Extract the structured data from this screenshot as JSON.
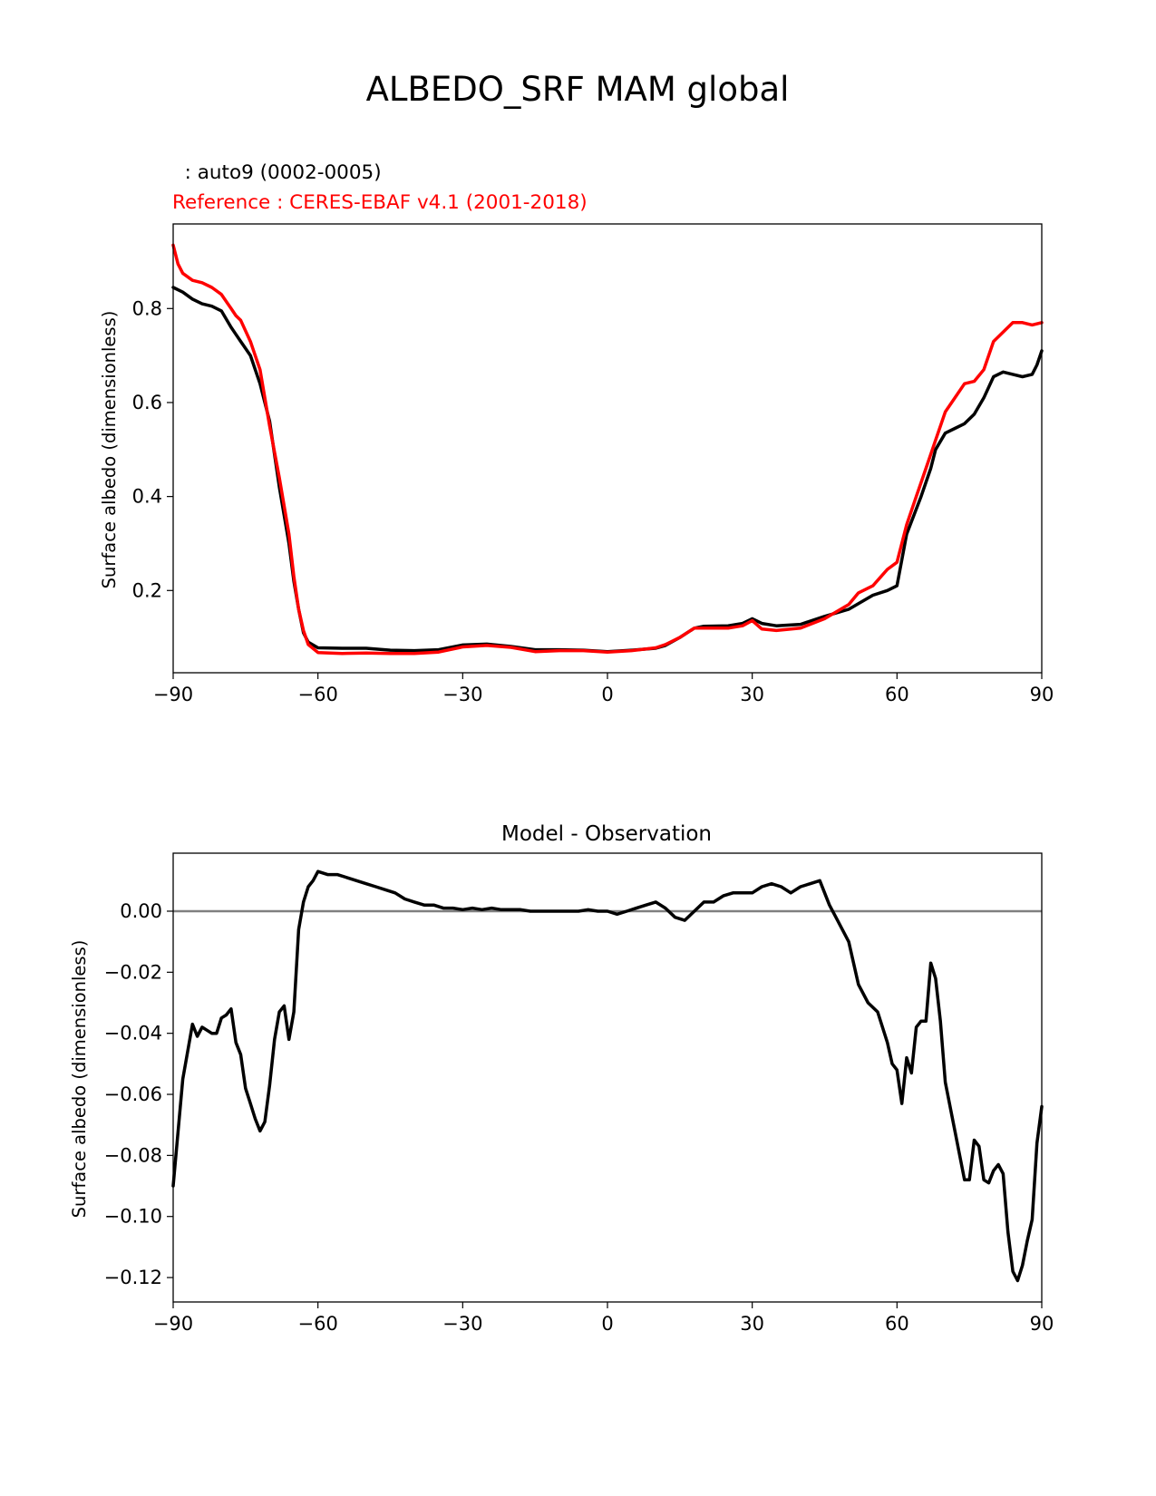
{
  "page_title": "ALBEDO_SRF MAM global",
  "chart_data": [
    {
      "type": "line",
      "legend_model": "  : auto9 (0002-0005)",
      "legend_reference": "Reference : CERES-EBAF v4.1 (2001-2018)",
      "title": "",
      "xlabel": "",
      "ylabel": "Surface albedo (dimensionless)",
      "xlim": [
        -90,
        90
      ],
      "ylim": [
        0.025,
        0.98
      ],
      "xticks": [
        -90,
        -60,
        -30,
        0,
        30,
        60,
        90
      ],
      "xtick_labels": [
        "−90",
        "−60",
        "−30",
        "0",
        "30",
        "60",
        "90"
      ],
      "yticks": [
        0.2,
        0.4,
        0.6,
        0.8
      ],
      "ytick_labels": [
        "0.2",
        "0.4",
        "0.6",
        "0.8"
      ],
      "colors": {
        "model": "#000000",
        "reference": "#ff0000"
      },
      "series": [
        {
          "name": "auto9 (0002-0005)",
          "x": [
            -90,
            -88,
            -86,
            -84,
            -82,
            -80,
            -78,
            -77,
            -76,
            -74,
            -72,
            -70,
            -68,
            -66,
            -65,
            -64,
            -63,
            -62,
            -60,
            -55,
            -50,
            -45,
            -40,
            -35,
            -30,
            -25,
            -20,
            -15,
            -10,
            -5,
            0,
            5,
            10,
            12,
            15,
            18,
            20,
            25,
            28,
            30,
            32,
            35,
            40,
            45,
            50,
            55,
            58,
            60,
            62,
            65,
            67,
            68,
            70,
            72,
            74,
            76,
            78,
            80,
            82,
            84,
            86,
            88,
            89,
            90
          ],
          "y": [
            0.845,
            0.835,
            0.82,
            0.81,
            0.805,
            0.795,
            0.76,
            0.745,
            0.73,
            0.7,
            0.64,
            0.56,
            0.42,
            0.3,
            0.22,
            0.16,
            0.11,
            0.09,
            0.078,
            0.077,
            0.077,
            0.073,
            0.072,
            0.074,
            0.084,
            0.086,
            0.081,
            0.074,
            0.074,
            0.073,
            0.07,
            0.073,
            0.077,
            0.083,
            0.1,
            0.12,
            0.124,
            0.125,
            0.13,
            0.14,
            0.13,
            0.125,
            0.128,
            0.145,
            0.16,
            0.19,
            0.2,
            0.21,
            0.32,
            0.4,
            0.46,
            0.5,
            0.535,
            0.545,
            0.555,
            0.575,
            0.61,
            0.655,
            0.665,
            0.66,
            0.655,
            0.66,
            0.68,
            0.71
          ]
        },
        {
          "name": "CERES-EBAF v4.1 (2001-2018)",
          "x": [
            -90,
            -89,
            -88,
            -86,
            -84,
            -82,
            -80,
            -78,
            -77,
            -76,
            -74,
            -72,
            -71,
            -70,
            -68,
            -66,
            -65,
            -64,
            -63,
            -62,
            -60,
            -55,
            -50,
            -45,
            -40,
            -35,
            -30,
            -25,
            -20,
            -15,
            -10,
            -5,
            0,
            5,
            10,
            12,
            15,
            18,
            20,
            25,
            28,
            30,
            32,
            35,
            40,
            45,
            50,
            52,
            55,
            58,
            60,
            62,
            64,
            66,
            68,
            70,
            72,
            74,
            76,
            78,
            80,
            82,
            84,
            86,
            88,
            90
          ],
          "y": [
            0.935,
            0.895,
            0.875,
            0.86,
            0.855,
            0.845,
            0.83,
            0.8,
            0.785,
            0.775,
            0.73,
            0.67,
            0.61,
            0.55,
            0.44,
            0.32,
            0.23,
            0.16,
            0.115,
            0.085,
            0.068,
            0.066,
            0.067,
            0.066,
            0.066,
            0.069,
            0.08,
            0.083,
            0.079,
            0.07,
            0.072,
            0.072,
            0.069,
            0.072,
            0.078,
            0.085,
            0.1,
            0.12,
            0.12,
            0.12,
            0.125,
            0.136,
            0.118,
            0.115,
            0.12,
            0.14,
            0.17,
            0.195,
            0.21,
            0.245,
            0.26,
            0.34,
            0.4,
            0.46,
            0.52,
            0.58,
            0.61,
            0.64,
            0.645,
            0.67,
            0.73,
            0.75,
            0.77,
            0.77,
            0.765,
            0.77
          ]
        }
      ]
    },
    {
      "type": "line",
      "title": "Model - Observation",
      "xlabel": "",
      "ylabel": "Surface albedo (dimensionless)",
      "xlim": [
        -90,
        90
      ],
      "ylim": [
        -0.128,
        0.019
      ],
      "xticks": [
        -90,
        -60,
        -30,
        0,
        30,
        60,
        90
      ],
      "xtick_labels": [
        "−90",
        "−60",
        "−30",
        "0",
        "30",
        "60",
        "90"
      ],
      "yticks": [
        0.0,
        -0.02,
        -0.04,
        -0.06,
        -0.08,
        -0.1,
        -0.12
      ],
      "ytick_labels": [
        "0.00",
        "−0.02",
        "−0.04",
        "−0.06",
        "−0.08",
        "−0.10",
        "−0.12"
      ],
      "zero_line": 0,
      "colors": {
        "difference": "#000000",
        "zero_line": "#808080"
      },
      "series": [
        {
          "name": "",
          "x": [
            -90,
            -88,
            -86,
            -85,
            -84,
            -83,
            -82,
            -81,
            -80,
            -79,
            -78,
            -77,
            -76,
            -75,
            -74,
            -73,
            -72,
            -71,
            -70,
            -69,
            -68,
            -67,
            -66,
            -65,
            -64,
            -63,
            -62,
            -61,
            -60,
            -58,
            -56,
            -54,
            -52,
            -50,
            -48,
            -46,
            -44,
            -42,
            -40,
            -38,
            -36,
            -34,
            -32,
            -30,
            -28,
            -26,
            -24,
            -22,
            -20,
            -18,
            -16,
            -14,
            -12,
            -10,
            -8,
            -6,
            -4,
            -2,
            0,
            2,
            4,
            6,
            8,
            10,
            12,
            14,
            16,
            18,
            20,
            22,
            24,
            26,
            28,
            30,
            32,
            34,
            36,
            38,
            40,
            42,
            44,
            46,
            48,
            50,
            52,
            54,
            56,
            58,
            59,
            60,
            61,
            62,
            63,
            64,
            65,
            66,
            67,
            68,
            69,
            70,
            72,
            74,
            75,
            76,
            77,
            78,
            79,
            80,
            81,
            82,
            83,
            84,
            85,
            86,
            87,
            88,
            89,
            90
          ],
          "y": [
            -0.09,
            -0.055,
            -0.037,
            -0.041,
            -0.038,
            -0.039,
            -0.04,
            -0.04,
            -0.035,
            -0.034,
            -0.032,
            -0.043,
            -0.047,
            -0.058,
            -0.063,
            -0.068,
            -0.072,
            -0.069,
            -0.057,
            -0.042,
            -0.033,
            -0.031,
            -0.042,
            -0.033,
            -0.006,
            0.003,
            0.008,
            0.01,
            0.013,
            0.012,
            0.012,
            0.011,
            0.01,
            0.009,
            0.008,
            0.007,
            0.006,
            0.004,
            0.003,
            0.002,
            0.002,
            0.001,
            0.001,
            0.0005,
            0.001,
            0.0005,
            0.001,
            0.0005,
            0.0005,
            0.0005,
            0.0,
            0.0,
            0.0,
            0.0,
            0.0,
            0.0,
            0.0005,
            0.0,
            0.0,
            -0.001,
            0.0,
            0.001,
            0.002,
            0.003,
            0.001,
            -0.002,
            -0.003,
            0.0,
            0.003,
            0.003,
            0.005,
            0.006,
            0.006,
            0.006,
            0.008,
            0.009,
            0.008,
            0.006,
            0.008,
            0.009,
            0.01,
            0.002,
            -0.004,
            -0.01,
            -0.024,
            -0.03,
            -0.033,
            -0.043,
            -0.05,
            -0.052,
            -0.063,
            -0.048,
            -0.053,
            -0.038,
            -0.036,
            -0.036,
            -0.017,
            -0.022,
            -0.036,
            -0.056,
            -0.072,
            -0.088,
            -0.088,
            -0.075,
            -0.077,
            -0.088,
            -0.089,
            -0.085,
            -0.083,
            -0.086,
            -0.105,
            -0.118,
            -0.121,
            -0.116,
            -0.108,
            -0.101,
            -0.076,
            -0.064
          ]
        }
      ]
    }
  ]
}
